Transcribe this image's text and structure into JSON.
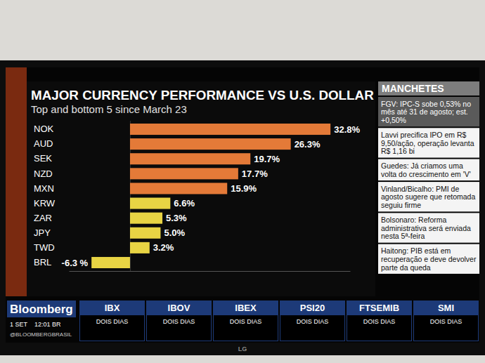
{
  "chart_data": {
    "type": "bar",
    "orientation": "horizontal",
    "title": "MAJOR CURRENCY PERFORMANCE VS U.S. DOLLAR",
    "subtitle": "Top and bottom 5 since March 23",
    "categories": [
      "NOK",
      "AUD",
      "SEK",
      "NZD",
      "MXN",
      "KRW",
      "ZAR",
      "JPY",
      "TWD",
      "BRL"
    ],
    "values": [
      32.8,
      26.3,
      19.7,
      17.7,
      15.9,
      6.6,
      5.3,
      5.0,
      3.2,
      -6.3
    ],
    "value_labels": [
      "32.8%",
      "26.3%",
      "19.7%",
      "17.7%",
      "15.9%",
      "6.6%",
      "5.3%",
      "5.0%",
      "3.2%",
      "-6.3 %"
    ],
    "colors": [
      "#e47a38",
      "#e47a38",
      "#e47a38",
      "#e47a38",
      "#e47a38",
      "#e8d444",
      "#e8d444",
      "#e8d444",
      "#e8d444",
      "#e8d444"
    ],
    "data_labels": true,
    "tick_labels": false,
    "grid": false,
    "xlim": [
      -10,
      36
    ],
    "xticks": [
      0
    ]
  },
  "headlines": {
    "title": "MANCHETES",
    "items": [
      "FGV: IPC-S sobe 0,53% no mês até 31 de agosto; est. +0,50%",
      "Lavvi precifica IPO em R$ 9,50/ação, operação levanta R$ 1,16 bi",
      "Guedes: Já criamos uma volta do crescimento em 'V'",
      "Vinland/Bicalho: PMI de agosto sugere que retomada seguiu firme",
      "Bolsonaro: Reforma administrativa será enviada nesta 5ª-feira",
      "Haitong: PIB está em recuperação e deve devolver parte da queda"
    ]
  },
  "footer": {
    "brand": "Bloomberg",
    "date": "1 SET",
    "time": "12:01 BR",
    "handle": "@BLOOMBERGBRASIL",
    "indices": [
      {
        "name": "IBX",
        "period": "DOIS DIAS"
      },
      {
        "name": "IBOV",
        "period": "DOIS DIAS"
      },
      {
        "name": "IBEX",
        "period": "DOIS DIAS"
      },
      {
        "name": "PSI20",
        "period": "DOIS DIAS"
      },
      {
        "name": "FTSEMIB",
        "period": "DOIS DIAS"
      },
      {
        "name": "SMI",
        "period": "DOIS DIAS"
      }
    ]
  },
  "tv_brand": "LG"
}
